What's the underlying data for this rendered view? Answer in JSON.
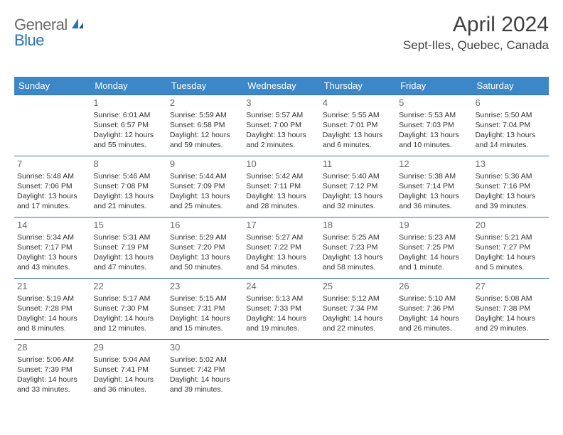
{
  "brand": {
    "name_part1": "General",
    "name_part2": "Blue",
    "color_gray": "#6b6b6b",
    "color_blue": "#2a72b5"
  },
  "header": {
    "month_title": "April 2024",
    "location": "Sept-Iles, Quebec, Canada"
  },
  "style": {
    "header_bg": "#3b87c8",
    "header_text": "#ffffff",
    "cell_border": "#3b6fa0",
    "body_text": "#333333",
    "daynum_color": "#6a6a6a",
    "title_color": "#404040",
    "month_fontsize": 30,
    "location_fontsize": 17,
    "dayheader_fontsize": 13,
    "cell_fontsize": 10.5,
    "daynum_fontsize": 13
  },
  "day_headers": [
    "Sunday",
    "Monday",
    "Tuesday",
    "Wednesday",
    "Thursday",
    "Friday",
    "Saturday"
  ],
  "weeks": [
    [
      null,
      {
        "n": "1",
        "sunrise": "Sunrise: 6:01 AM",
        "sunset": "Sunset: 6:57 PM",
        "daylight": "Daylight: 12 hours and 55 minutes."
      },
      {
        "n": "2",
        "sunrise": "Sunrise: 5:59 AM",
        "sunset": "Sunset: 6:58 PM",
        "daylight": "Daylight: 12 hours and 59 minutes."
      },
      {
        "n": "3",
        "sunrise": "Sunrise: 5:57 AM",
        "sunset": "Sunset: 7:00 PM",
        "daylight": "Daylight: 13 hours and 2 minutes."
      },
      {
        "n": "4",
        "sunrise": "Sunrise: 5:55 AM",
        "sunset": "Sunset: 7:01 PM",
        "daylight": "Daylight: 13 hours and 6 minutes."
      },
      {
        "n": "5",
        "sunrise": "Sunrise: 5:53 AM",
        "sunset": "Sunset: 7:03 PM",
        "daylight": "Daylight: 13 hours and 10 minutes."
      },
      {
        "n": "6",
        "sunrise": "Sunrise: 5:50 AM",
        "sunset": "Sunset: 7:04 PM",
        "daylight": "Daylight: 13 hours and 14 minutes."
      }
    ],
    [
      {
        "n": "7",
        "sunrise": "Sunrise: 5:48 AM",
        "sunset": "Sunset: 7:06 PM",
        "daylight": "Daylight: 13 hours and 17 minutes."
      },
      {
        "n": "8",
        "sunrise": "Sunrise: 5:46 AM",
        "sunset": "Sunset: 7:08 PM",
        "daylight": "Daylight: 13 hours and 21 minutes."
      },
      {
        "n": "9",
        "sunrise": "Sunrise: 5:44 AM",
        "sunset": "Sunset: 7:09 PM",
        "daylight": "Daylight: 13 hours and 25 minutes."
      },
      {
        "n": "10",
        "sunrise": "Sunrise: 5:42 AM",
        "sunset": "Sunset: 7:11 PM",
        "daylight": "Daylight: 13 hours and 28 minutes."
      },
      {
        "n": "11",
        "sunrise": "Sunrise: 5:40 AM",
        "sunset": "Sunset: 7:12 PM",
        "daylight": "Daylight: 13 hours and 32 minutes."
      },
      {
        "n": "12",
        "sunrise": "Sunrise: 5:38 AM",
        "sunset": "Sunset: 7:14 PM",
        "daylight": "Daylight: 13 hours and 36 minutes."
      },
      {
        "n": "13",
        "sunrise": "Sunrise: 5:36 AM",
        "sunset": "Sunset: 7:16 PM",
        "daylight": "Daylight: 13 hours and 39 minutes."
      }
    ],
    [
      {
        "n": "14",
        "sunrise": "Sunrise: 5:34 AM",
        "sunset": "Sunset: 7:17 PM",
        "daylight": "Daylight: 13 hours and 43 minutes."
      },
      {
        "n": "15",
        "sunrise": "Sunrise: 5:31 AM",
        "sunset": "Sunset: 7:19 PM",
        "daylight": "Daylight: 13 hours and 47 minutes."
      },
      {
        "n": "16",
        "sunrise": "Sunrise: 5:29 AM",
        "sunset": "Sunset: 7:20 PM",
        "daylight": "Daylight: 13 hours and 50 minutes."
      },
      {
        "n": "17",
        "sunrise": "Sunrise: 5:27 AM",
        "sunset": "Sunset: 7:22 PM",
        "daylight": "Daylight: 13 hours and 54 minutes."
      },
      {
        "n": "18",
        "sunrise": "Sunrise: 5:25 AM",
        "sunset": "Sunset: 7:23 PM",
        "daylight": "Daylight: 13 hours and 58 minutes."
      },
      {
        "n": "19",
        "sunrise": "Sunrise: 5:23 AM",
        "sunset": "Sunset: 7:25 PM",
        "daylight": "Daylight: 14 hours and 1 minute."
      },
      {
        "n": "20",
        "sunrise": "Sunrise: 5:21 AM",
        "sunset": "Sunset: 7:27 PM",
        "daylight": "Daylight: 14 hours and 5 minutes."
      }
    ],
    [
      {
        "n": "21",
        "sunrise": "Sunrise: 5:19 AM",
        "sunset": "Sunset: 7:28 PM",
        "daylight": "Daylight: 14 hours and 8 minutes."
      },
      {
        "n": "22",
        "sunrise": "Sunrise: 5:17 AM",
        "sunset": "Sunset: 7:30 PM",
        "daylight": "Daylight: 14 hours and 12 minutes."
      },
      {
        "n": "23",
        "sunrise": "Sunrise: 5:15 AM",
        "sunset": "Sunset: 7:31 PM",
        "daylight": "Daylight: 14 hours and 15 minutes."
      },
      {
        "n": "24",
        "sunrise": "Sunrise: 5:13 AM",
        "sunset": "Sunset: 7:33 PM",
        "daylight": "Daylight: 14 hours and 19 minutes."
      },
      {
        "n": "25",
        "sunrise": "Sunrise: 5:12 AM",
        "sunset": "Sunset: 7:34 PM",
        "daylight": "Daylight: 14 hours and 22 minutes."
      },
      {
        "n": "26",
        "sunrise": "Sunrise: 5:10 AM",
        "sunset": "Sunset: 7:36 PM",
        "daylight": "Daylight: 14 hours and 26 minutes."
      },
      {
        "n": "27",
        "sunrise": "Sunrise: 5:08 AM",
        "sunset": "Sunset: 7:38 PM",
        "daylight": "Daylight: 14 hours and 29 minutes."
      }
    ],
    [
      {
        "n": "28",
        "sunrise": "Sunrise: 5:06 AM",
        "sunset": "Sunset: 7:39 PM",
        "daylight": "Daylight: 14 hours and 33 minutes."
      },
      {
        "n": "29",
        "sunrise": "Sunrise: 5:04 AM",
        "sunset": "Sunset: 7:41 PM",
        "daylight": "Daylight: 14 hours and 36 minutes."
      },
      {
        "n": "30",
        "sunrise": "Sunrise: 5:02 AM",
        "sunset": "Sunset: 7:42 PM",
        "daylight": "Daylight: 14 hours and 39 minutes."
      },
      null,
      null,
      null,
      null
    ]
  ]
}
